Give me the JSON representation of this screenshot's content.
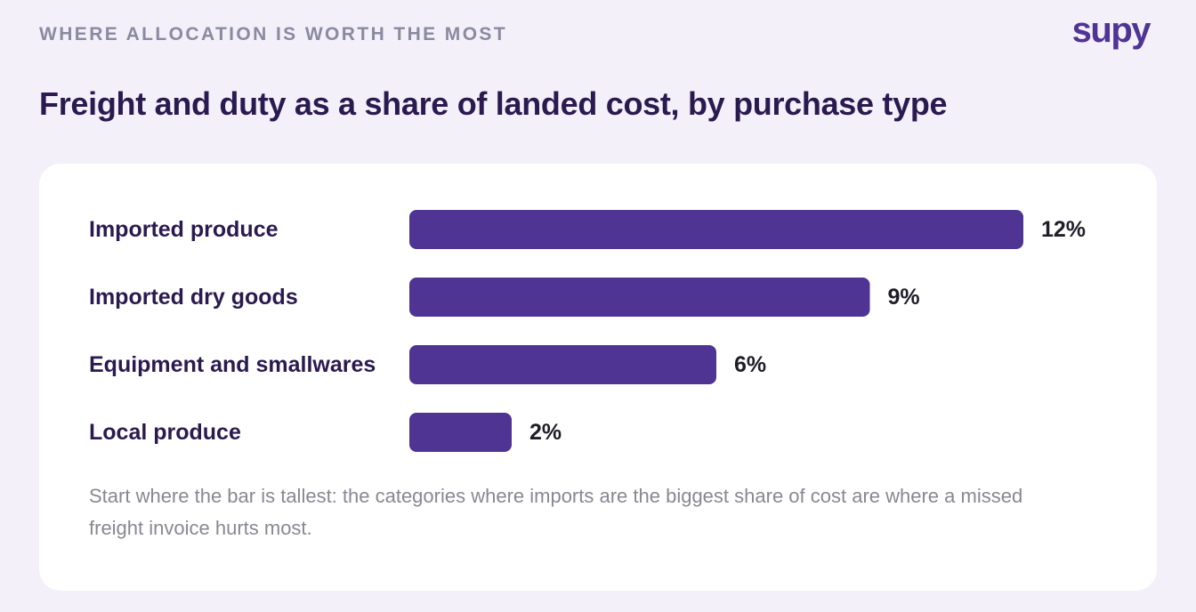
{
  "header": {
    "eyebrow": "WHERE ALLOCATION IS WORTH THE MOST",
    "logo": "supy",
    "title": "Freight and duty as a share of landed cost, by purchase type"
  },
  "colors": {
    "background": "#f3f0fa",
    "bar": "#4f3494",
    "category_label": "#2b1a4f",
    "value_label": "#1e1e28",
    "eyebrow": "#8a8aa0",
    "caption": "#888892"
  },
  "chart_data": {
    "type": "bar",
    "orientation": "horizontal",
    "categories": [
      "Imported produce",
      "Imported dry goods",
      "Equipment and smallwares",
      "Local produce"
    ],
    "values": [
      12,
      9,
      6,
      2
    ],
    "value_labels": [
      "12%",
      "9%",
      "6%",
      "2%"
    ],
    "unit": "%",
    "xlim": [
      0,
      12
    ],
    "grid": false,
    "legend": "none",
    "title": "Freight and duty as a share of landed cost, by purchase type"
  },
  "caption": "Start where the bar is tallest: the categories where imports are the biggest share of cost are where a missed freight invoice hurts most."
}
